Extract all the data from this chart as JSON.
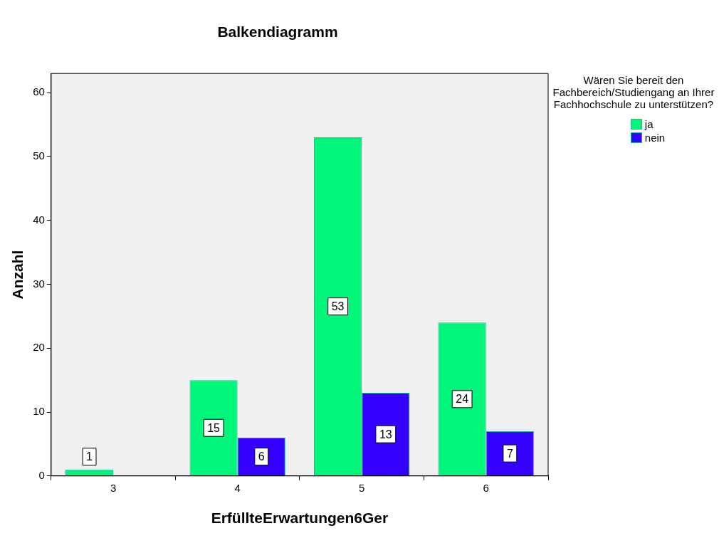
{
  "chart_data": {
    "type": "bar",
    "title": "Balkendiagramm",
    "xlabel": "ErfüllteErwartungen6Ger",
    "ylabel": "Anzahl",
    "legend_title": "Wären Sie bereit den Fachbereich/Studiengang an Ihrer Fachhochschule zu unterstützen?",
    "categories": [
      "3",
      "4",
      "5",
      "6"
    ],
    "series": [
      {
        "name": "ja",
        "color": "#00f57a",
        "values": [
          1,
          15,
          53,
          24
        ]
      },
      {
        "name": "nein",
        "color": "#3300ff",
        "values": [
          null,
          6,
          13,
          7
        ]
      }
    ],
    "ylim": [
      0,
      63
    ],
    "yticks": [
      0,
      10,
      20,
      30,
      40,
      50,
      60
    ],
    "grid": false,
    "legend": "right",
    "data_labels": true
  }
}
